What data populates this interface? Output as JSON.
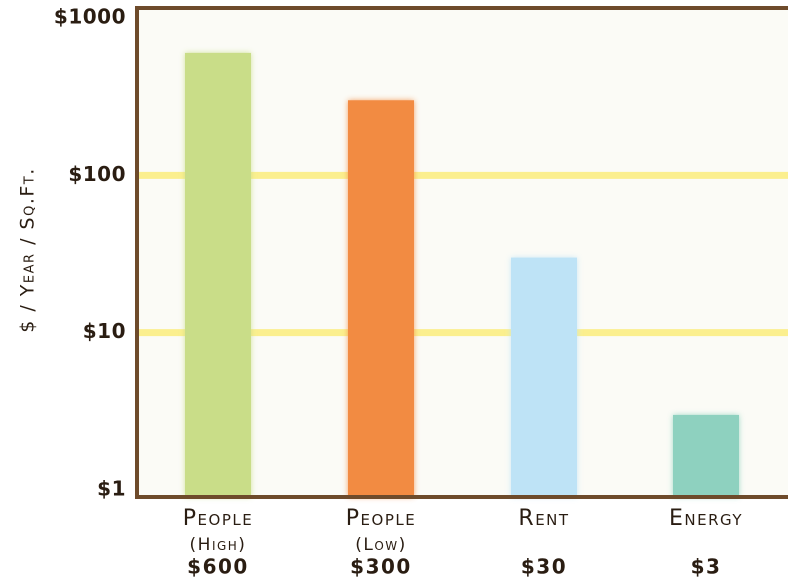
{
  "chart_data": {
    "type": "bar",
    "y_label": "$ / Year / Sq.Ft.",
    "categories": [
      "People",
      "People",
      "Rent",
      "Energy"
    ],
    "category_notes": [
      "(High)",
      "(Low)",
      null,
      null
    ],
    "values": [
      600,
      300,
      30,
      3
    ],
    "value_labels": [
      "$600",
      "$300",
      "$30",
      "$3"
    ],
    "colors": [
      "#c9dd88",
      "#f28b42",
      "#bee3f6",
      "#8ed1bf"
    ],
    "ylim": [
      1,
      1000
    ],
    "yticks": [
      {
        "value": 1,
        "label": "$1"
      },
      {
        "value": 10,
        "label": "$10"
      },
      {
        "value": 100,
        "label": "$100"
      },
      {
        "value": 1000,
        "label": "$1000"
      }
    ],
    "log_scale": true,
    "grid": true,
    "grid_color": "#fbef8e"
  }
}
